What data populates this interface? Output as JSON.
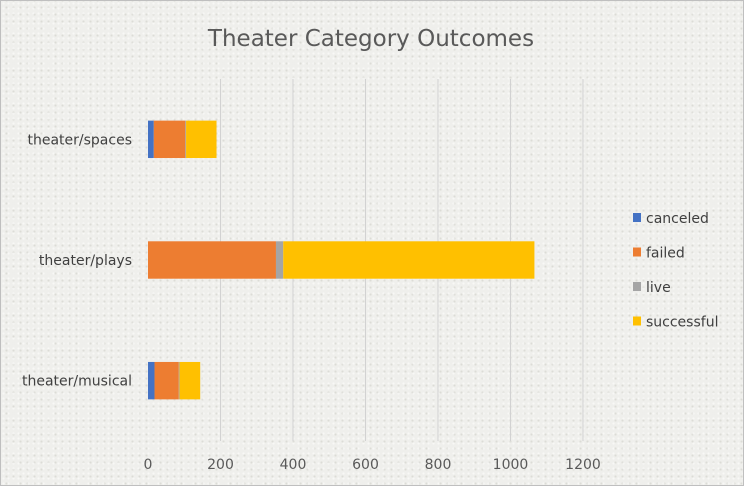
{
  "chart_data": {
    "type": "bar",
    "orientation": "horizontal",
    "stacked": true,
    "title": "Theater Category Outcomes",
    "categories": [
      "theater/spaces",
      "theater/plays",
      "theater/musical"
    ],
    "series": [
      {
        "name": "canceled",
        "color": "#4472C4",
        "values": [
          16,
          0,
          18
        ]
      },
      {
        "name": "failed",
        "color": "#ED7D31",
        "values": [
          87,
          353,
          67
        ]
      },
      {
        "name": "live",
        "color": "#A5A5A5",
        "values": [
          2,
          20,
          2
        ]
      },
      {
        "name": "successful",
        "color": "#FFC000",
        "values": [
          84,
          693,
          57
        ]
      }
    ],
    "xlim": [
      0,
      1200
    ],
    "xticks": [
      0,
      200,
      400,
      600,
      800,
      1000,
      1200
    ],
    "grid": "vertical",
    "legend_position": "right"
  }
}
